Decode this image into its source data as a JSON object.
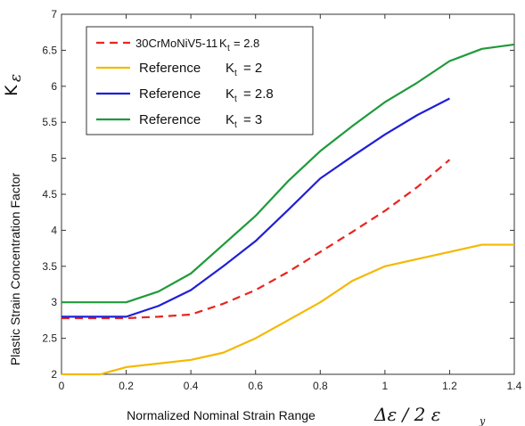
{
  "chart_data": {
    "type": "line",
    "xlabel": "Normalized Nominal Strain Range",
    "xlabel_symbol": "Δε / 2 ε",
    "xlabel_symbol_sub": "y",
    "ylabel": "Plastic Strain Concentration Factor",
    "ylabel_symbol": "K",
    "ylabel_symbol_sub": "ε",
    "xlim": [
      0,
      1.4
    ],
    "ylim": [
      2,
      7
    ],
    "xticks": [
      0,
      0.2,
      0.4,
      0.6,
      0.8,
      1,
      1.2,
      1.4
    ],
    "xtick_labels": [
      "0",
      "0.2",
      "0.4",
      "0.6",
      "0.8",
      "1",
      "1.2",
      "1.4"
    ],
    "yticks": [
      2,
      2.5,
      3,
      3.5,
      4,
      4.5,
      5,
      5.5,
      6,
      6.5,
      7
    ],
    "ytick_labels": [
      "2",
      "2.5",
      "3",
      "3.5",
      "4",
      "4.5",
      "5",
      "5.5",
      "6",
      "6.5",
      "7"
    ],
    "grid": false,
    "legend_position": "top-left",
    "series": [
      {
        "name": "30CrMoNiV5-11",
        "kt_label": "K",
        "kt_sub": "t",
        "kt_value": "= 2.8",
        "color": "#e8251f",
        "dash": "dashed",
        "x": [
          0,
          0.2,
          0.3,
          0.4,
          0.5,
          0.6,
          0.7,
          0.8,
          0.9,
          1.0,
          1.1,
          1.2
        ],
        "y": [
          2.78,
          2.78,
          2.8,
          2.83,
          2.98,
          3.17,
          3.42,
          3.7,
          3.98,
          4.27,
          4.6,
          4.98
        ]
      },
      {
        "name": "Reference",
        "kt_label": "K",
        "kt_sub": "t",
        "kt_value": "= 2",
        "color": "#f5b800",
        "dash": "solid",
        "x": [
          0,
          0.12,
          0.2,
          0.3,
          0.4,
          0.5,
          0.6,
          0.7,
          0.8,
          0.9,
          1.0,
          1.1,
          1.2,
          1.3,
          1.4
        ],
        "y": [
          2.0,
          2.0,
          2.1,
          2.15,
          2.2,
          2.3,
          2.5,
          2.75,
          3.0,
          3.3,
          3.5,
          3.6,
          3.7,
          3.8,
          3.8
        ]
      },
      {
        "name": "Reference",
        "kt_label": "K",
        "kt_sub": "t",
        "kt_value": "= 2.8",
        "color": "#1f1fd6",
        "dash": "solid",
        "x": [
          0,
          0.2,
          0.3,
          0.4,
          0.5,
          0.6,
          0.7,
          0.8,
          0.9,
          1.0,
          1.1,
          1.2
        ],
        "y": [
          2.8,
          2.8,
          2.95,
          3.17,
          3.5,
          3.85,
          4.28,
          4.72,
          5.03,
          5.33,
          5.6,
          5.83
        ]
      },
      {
        "name": "Reference",
        "kt_label": "K",
        "kt_sub": "t",
        "kt_value": "= 3",
        "color": "#1f9a3a",
        "dash": "solid",
        "x": [
          0,
          0.2,
          0.3,
          0.4,
          0.5,
          0.6,
          0.7,
          0.8,
          0.9,
          1.0,
          1.1,
          1.2,
          1.3,
          1.4
        ],
        "y": [
          3.0,
          3.0,
          3.15,
          3.4,
          3.8,
          4.2,
          4.68,
          5.1,
          5.45,
          5.78,
          6.05,
          6.35,
          6.52,
          6.58
        ]
      }
    ]
  }
}
